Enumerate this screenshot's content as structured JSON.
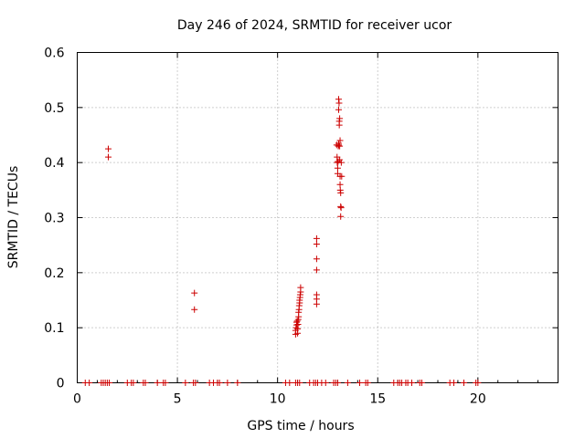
{
  "chart_data": {
    "type": "scatter",
    "title": "Day 246 of 2024, SRMTID for receiver ucor",
    "xlabel": "GPS time / hours",
    "ylabel": "SRMTID / TECUs",
    "xlim": [
      0,
      24
    ],
    "ylim": [
      0,
      0.6
    ],
    "xticks": [
      "0",
      "5",
      "10",
      "15",
      "20"
    ],
    "yticks": [
      "0",
      "0.1",
      "0.2",
      "0.3",
      "0.4",
      "0.5",
      "0.6"
    ],
    "grid": true,
    "marker": "plus",
    "color": "#cc0000",
    "points": [
      [
        0.4,
        0
      ],
      [
        0.6,
        0
      ],
      [
        1.2,
        0
      ],
      [
        1.3,
        0
      ],
      [
        1.4,
        0
      ],
      [
        1.5,
        0
      ],
      [
        1.6,
        0
      ],
      [
        2.5,
        0
      ],
      [
        2.7,
        0
      ],
      [
        2.8,
        0
      ],
      [
        3.3,
        0
      ],
      [
        3.4,
        0
      ],
      [
        4.0,
        0
      ],
      [
        4.3,
        0
      ],
      [
        4.4,
        0
      ],
      [
        5.4,
        0
      ],
      [
        5.8,
        0
      ],
      [
        5.9,
        0
      ],
      [
        6.6,
        0
      ],
      [
        6.8,
        0
      ],
      [
        7.0,
        0
      ],
      [
        7.1,
        0
      ],
      [
        7.5,
        0
      ],
      [
        8.0,
        0
      ],
      [
        10.4,
        0
      ],
      [
        10.6,
        0
      ],
      [
        10.9,
        0
      ],
      [
        11.0,
        0
      ],
      [
        11.1,
        0
      ],
      [
        11.6,
        0
      ],
      [
        11.8,
        0
      ],
      [
        11.9,
        0
      ],
      [
        12.0,
        0
      ],
      [
        12.2,
        0
      ],
      [
        12.4,
        0
      ],
      [
        12.8,
        0
      ],
      [
        12.9,
        0
      ],
      [
        13.0,
        0
      ],
      [
        13.5,
        0
      ],
      [
        14.1,
        0
      ],
      [
        14.4,
        0
      ],
      [
        14.5,
        0
      ],
      [
        15.8,
        0
      ],
      [
        16.0,
        0
      ],
      [
        16.1,
        0
      ],
      [
        16.2,
        0
      ],
      [
        16.4,
        0
      ],
      [
        16.5,
        0
      ],
      [
        16.7,
        0
      ],
      [
        17.1,
        0
      ],
      [
        17.2,
        0
      ],
      [
        18.6,
        0
      ],
      [
        18.8,
        0
      ],
      [
        19.3,
        0
      ],
      [
        19.9,
        0
      ],
      [
        20.0,
        0
      ],
      [
        1.55,
        0.425
      ],
      [
        1.55,
        0.41
      ],
      [
        5.85,
        0.163
      ],
      [
        5.85,
        0.133
      ],
      [
        10.9,
        0.088
      ],
      [
        10.9,
        0.095
      ],
      [
        10.92,
        0.1
      ],
      [
        10.95,
        0.105
      ],
      [
        10.95,
        0.11
      ],
      [
        11.0,
        0.09
      ],
      [
        11.0,
        0.098
      ],
      [
        11.02,
        0.106
      ],
      [
        11.03,
        0.115
      ],
      [
        11.05,
        0.12
      ],
      [
        11.05,
        0.128
      ],
      [
        11.07,
        0.133
      ],
      [
        11.08,
        0.14
      ],
      [
        11.1,
        0.145
      ],
      [
        11.1,
        0.15
      ],
      [
        11.12,
        0.155
      ],
      [
        11.13,
        0.16
      ],
      [
        11.15,
        0.165
      ],
      [
        11.15,
        0.173
      ],
      [
        10.98,
        0.112
      ],
      [
        11.95,
        0.262
      ],
      [
        11.95,
        0.252
      ],
      [
        11.95,
        0.225
      ],
      [
        11.95,
        0.205
      ],
      [
        11.95,
        0.16
      ],
      [
        11.95,
        0.152
      ],
      [
        11.95,
        0.143
      ],
      [
        12.95,
        0.432
      ],
      [
        12.97,
        0.41
      ],
      [
        12.98,
        0.4
      ],
      [
        13.0,
        0.39
      ],
      [
        13.0,
        0.38
      ],
      [
        13.02,
        0.402
      ],
      [
        13.03,
        0.43
      ],
      [
        13.05,
        0.432
      ],
      [
        13.05,
        0.435
      ],
      [
        13.05,
        0.496
      ],
      [
        13.05,
        0.515
      ],
      [
        13.07,
        0.508
      ],
      [
        13.08,
        0.475
      ],
      [
        13.08,
        0.468
      ],
      [
        13.1,
        0.48
      ],
      [
        13.1,
        0.405
      ],
      [
        13.1,
        0.43
      ],
      [
        13.12,
        0.44
      ],
      [
        13.12,
        0.375
      ],
      [
        13.12,
        0.36
      ],
      [
        13.13,
        0.35
      ],
      [
        13.15,
        0.345
      ],
      [
        13.15,
        0.32
      ],
      [
        13.15,
        0.302
      ],
      [
        13.17,
        0.318
      ],
      [
        13.18,
        0.4
      ],
      [
        13.2,
        0.375
      ]
    ]
  }
}
